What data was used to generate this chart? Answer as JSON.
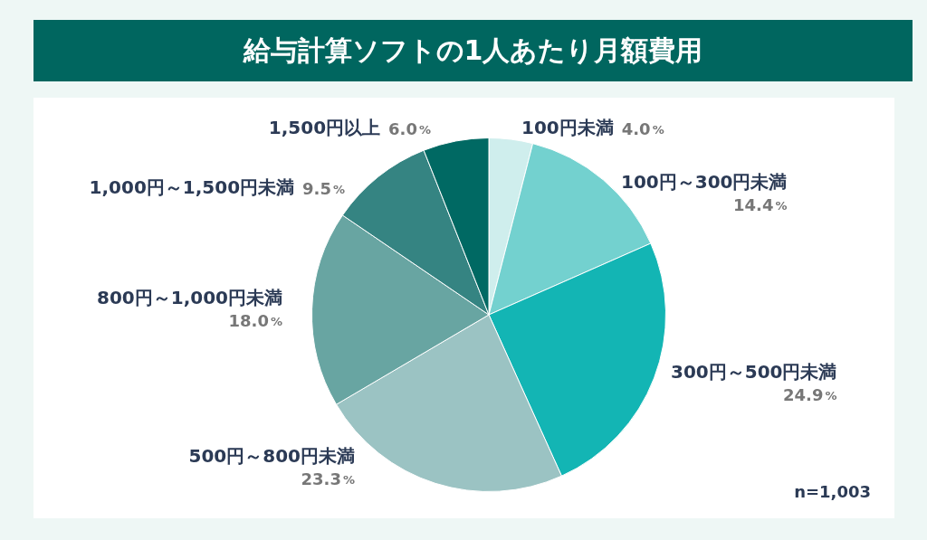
{
  "chart_data": {
    "type": "pie",
    "title": "給与計算ソフトの1人あたり月額費用",
    "categories": [
      "100円未満",
      "100円～300円未満",
      "300円～500円未満",
      "500円～800円未満",
      "800円～1,000円未満",
      "1,000円～1,500円未満",
      "1,500円以上"
    ],
    "values": [
      4.0,
      14.4,
      24.9,
      23.3,
      18.0,
      9.5,
      6.0
    ],
    "colors": [
      "#cfeeed",
      "#73d1cf",
      "#13b5b4",
      "#9bc3c3",
      "#68a5a2",
      "#358482",
      "#006963"
    ],
    "value_labels": [
      "4.0%",
      "14.4%",
      "24.9%",
      "23.3%",
      "18.0%",
      "9.5%",
      "6.0%"
    ],
    "annotations": [
      "n=1,003"
    ]
  }
}
